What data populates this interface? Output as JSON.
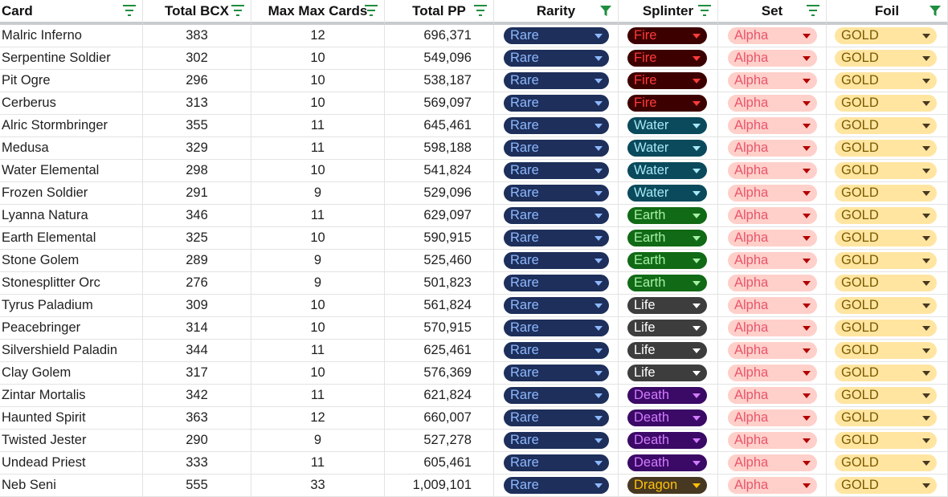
{
  "headers": [
    {
      "label": "Card",
      "filter": "lines"
    },
    {
      "label": "Total BCX",
      "filter": "lines"
    },
    {
      "label": "Max Max Cards",
      "filter": "lines"
    },
    {
      "label": "Total PP",
      "filter": "lines"
    },
    {
      "label": "Rarity",
      "filter": "funnel"
    },
    {
      "label": "Splinter",
      "filter": "lines"
    },
    {
      "label": "Set",
      "filter": "lines"
    },
    {
      "label": "Foil",
      "filter": "funnel"
    }
  ],
  "splinter_colors": {
    "Fire": {
      "bg": "#3d0000",
      "fg": "#ff3b3b"
    },
    "Water": {
      "bg": "#0a4a5c",
      "fg": "#a6e8f5"
    },
    "Earth": {
      "bg": "#116a15",
      "fg": "#a7f0a7"
    },
    "Life": {
      "bg": "#3d3d3d",
      "fg": "#ffffff"
    },
    "Death": {
      "bg": "#3b0966",
      "fg": "#d27cff"
    },
    "Dragon": {
      "bg": "#473821",
      "fg": "#ffc107"
    }
  },
  "rows": [
    {
      "card": "Malric Inferno",
      "bcx": "383",
      "max": "12",
      "pp": "696,371",
      "rarity": "Rare",
      "splinter": "Fire",
      "set": "Alpha",
      "foil": "GOLD"
    },
    {
      "card": "Serpentine Soldier",
      "bcx": "302",
      "max": "10",
      "pp": "549,096",
      "rarity": "Rare",
      "splinter": "Fire",
      "set": "Alpha",
      "foil": "GOLD"
    },
    {
      "card": "Pit Ogre",
      "bcx": "296",
      "max": "10",
      "pp": "538,187",
      "rarity": "Rare",
      "splinter": "Fire",
      "set": "Alpha",
      "foil": "GOLD"
    },
    {
      "card": "Cerberus",
      "bcx": "313",
      "max": "10",
      "pp": "569,097",
      "rarity": "Rare",
      "splinter": "Fire",
      "set": "Alpha",
      "foil": "GOLD"
    },
    {
      "card": "Alric Stormbringer",
      "bcx": "355",
      "max": "11",
      "pp": "645,461",
      "rarity": "Rare",
      "splinter": "Water",
      "set": "Alpha",
      "foil": "GOLD"
    },
    {
      "card": "Medusa",
      "bcx": "329",
      "max": "11",
      "pp": "598,188",
      "rarity": "Rare",
      "splinter": "Water",
      "set": "Alpha",
      "foil": "GOLD"
    },
    {
      "card": "Water Elemental",
      "bcx": "298",
      "max": "10",
      "pp": "541,824",
      "rarity": "Rare",
      "splinter": "Water",
      "set": "Alpha",
      "foil": "GOLD"
    },
    {
      "card": "Frozen Soldier",
      "bcx": "291",
      "max": "9",
      "pp": "529,096",
      "rarity": "Rare",
      "splinter": "Water",
      "set": "Alpha",
      "foil": "GOLD"
    },
    {
      "card": "Lyanna Natura",
      "bcx": "346",
      "max": "11",
      "pp": "629,097",
      "rarity": "Rare",
      "splinter": "Earth",
      "set": "Alpha",
      "foil": "GOLD"
    },
    {
      "card": "Earth Elemental",
      "bcx": "325",
      "max": "10",
      "pp": "590,915",
      "rarity": "Rare",
      "splinter": "Earth",
      "set": "Alpha",
      "foil": "GOLD"
    },
    {
      "card": "Stone Golem",
      "bcx": "289",
      "max": "9",
      "pp": "525,460",
      "rarity": "Rare",
      "splinter": "Earth",
      "set": "Alpha",
      "foil": "GOLD"
    },
    {
      "card": "Stonesplitter Orc",
      "bcx": "276",
      "max": "9",
      "pp": "501,823",
      "rarity": "Rare",
      "splinter": "Earth",
      "set": "Alpha",
      "foil": "GOLD"
    },
    {
      "card": "Tyrus Paladium",
      "bcx": "309",
      "max": "10",
      "pp": "561,824",
      "rarity": "Rare",
      "splinter": "Life",
      "set": "Alpha",
      "foil": "GOLD"
    },
    {
      "card": "Peacebringer",
      "bcx": "314",
      "max": "10",
      "pp": "570,915",
      "rarity": "Rare",
      "splinter": "Life",
      "set": "Alpha",
      "foil": "GOLD"
    },
    {
      "card": "Silvershield Paladin",
      "bcx": "344",
      "max": "11",
      "pp": "625,461",
      "rarity": "Rare",
      "splinter": "Life",
      "set": "Alpha",
      "foil": "GOLD"
    },
    {
      "card": "Clay Golem",
      "bcx": "317",
      "max": "10",
      "pp": "576,369",
      "rarity": "Rare",
      "splinter": "Life",
      "set": "Alpha",
      "foil": "GOLD"
    },
    {
      "card": "Zintar Mortalis",
      "bcx": "342",
      "max": "11",
      "pp": "621,824",
      "rarity": "Rare",
      "splinter": "Death",
      "set": "Alpha",
      "foil": "GOLD"
    },
    {
      "card": "Haunted Spirit",
      "bcx": "363",
      "max": "12",
      "pp": "660,007",
      "rarity": "Rare",
      "splinter": "Death",
      "set": "Alpha",
      "foil": "GOLD"
    },
    {
      "card": "Twisted Jester",
      "bcx": "290",
      "max": "9",
      "pp": "527,278",
      "rarity": "Rare",
      "splinter": "Death",
      "set": "Alpha",
      "foil": "GOLD"
    },
    {
      "card": "Undead Priest",
      "bcx": "333",
      "max": "11",
      "pp": "605,461",
      "rarity": "Rare",
      "splinter": "Death",
      "set": "Alpha",
      "foil": "GOLD"
    },
    {
      "card": "Neb Seni",
      "bcx": "555",
      "max": "33",
      "pp": "1,009,101",
      "rarity": "Rare",
      "splinter": "Dragon",
      "set": "Alpha",
      "foil": "GOLD"
    }
  ]
}
